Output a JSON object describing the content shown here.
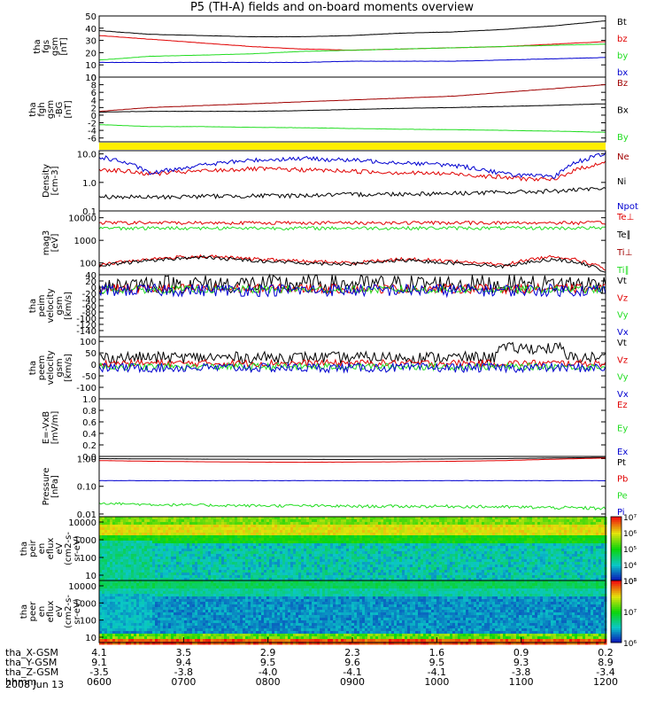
{
  "title": "P5 (TH-A) fields and on-board moments overview",
  "date": "2008 Jun 13",
  "colors": {
    "black": "#000000",
    "red": "#e00000",
    "green": "#22dd22",
    "blue": "#0000d0",
    "darkred": "#a00000",
    "yellow": "#ffee00"
  },
  "chart_data": [
    {
      "type": "line",
      "id": "fgs",
      "ylabel": [
        "tha",
        "fgs",
        "gsm",
        "[nT]"
      ],
      "ylim": [
        0,
        50
      ],
      "scale": "linear",
      "ticks": [
        "0",
        "10",
        "20",
        "30",
        "40",
        "50"
      ],
      "series": [
        {
          "name": "Bt",
          "color": "black",
          "values": [
            38,
            35,
            34,
            33,
            33,
            34,
            36,
            37,
            39,
            42,
            46
          ]
        },
        {
          "name": "bz",
          "color": "red",
          "values": [
            34,
            31,
            28,
            25,
            23,
            22,
            23,
            24,
            25,
            27,
            29
          ]
        },
        {
          "name": "by",
          "color": "green",
          "values": [
            14,
            17,
            18,
            19,
            21,
            22,
            23,
            24,
            25,
            26,
            27
          ]
        },
        {
          "name": "bx",
          "color": "blue",
          "values": [
            12,
            12,
            12,
            12,
            12,
            13,
            13,
            13,
            14,
            15,
            16
          ]
        }
      ]
    },
    {
      "type": "line",
      "id": "fgh",
      "ylabel": [
        "tha",
        "fgh",
        "gsm",
        "-BG",
        "[nT]"
      ],
      "ylim": [
        -7,
        10
      ],
      "scale": "linear",
      "ticks": [
        "-6",
        "-4",
        "-2",
        "0",
        "2",
        "4",
        "6",
        "8",
        "10"
      ],
      "series": [
        {
          "name": "Bz",
          "color": "darkred",
          "values": [
            1,
            2,
            2.5,
            3,
            3.5,
            4,
            4.5,
            5,
            6,
            7,
            8
          ]
        },
        {
          "name": "Bx",
          "color": "black",
          "values": [
            0.8,
            1,
            1,
            1,
            1.2,
            1.5,
            1.8,
            2,
            2.3,
            2.6,
            3
          ]
        },
        {
          "name": "By",
          "color": "green",
          "values": [
            -2.5,
            -3,
            -3,
            -3.2,
            -3.3,
            -3.5,
            -3.7,
            -3.8,
            -4,
            -4.2,
            -4.5
          ]
        }
      ]
    },
    {
      "type": "bar",
      "id": "flag",
      "ylabel": [],
      "color": "yellow"
    },
    {
      "type": "line",
      "id": "density",
      "ylabel": [
        "Density",
        "[cm-3]"
      ],
      "ylim": [
        0.1,
        13
      ],
      "scale": "log",
      "ticks": [
        "0.1",
        "1.0",
        "10.0"
      ],
      "series": [
        {
          "name": "Ne",
          "color": "red",
          "values": [
            3,
            2,
            2.5,
            3,
            2.8,
            2.5,
            2.2,
            2,
            1.5,
            1.2,
            5
          ]
        },
        {
          "name": "Ni",
          "color": "black",
          "values": [
            0.32,
            0.3,
            0.33,
            0.34,
            0.35,
            0.38,
            0.4,
            0.42,
            0.45,
            0.5,
            0.6
          ]
        },
        {
          "name": "Npot",
          "color": "blue",
          "values": [
            8,
            2,
            4,
            6,
            7,
            6,
            5,
            4,
            2,
            1.5,
            10
          ]
        }
      ]
    },
    {
      "type": "line",
      "id": "temp",
      "ylabel": [
        "mag3",
        "[eV]"
      ],
      "ylim": [
        30,
        20000
      ],
      "scale": "log",
      "ticks": [
        "100",
        "1000",
        "10000"
      ],
      "series": [
        {
          "name": "Te⊥",
          "color": "red",
          "values": [
            80,
            150,
            200,
            150,
            120,
            100,
            150,
            120,
            80,
            200,
            50
          ]
        },
        {
          "name": "Te∥",
          "color": "black",
          "values": [
            70,
            130,
            180,
            130,
            100,
            90,
            130,
            100,
            70,
            150,
            40
          ]
        },
        {
          "name": "Ti⊥",
          "color": "red",
          "values": [
            6000,
            6000,
            6000,
            6000,
            6000,
            6000,
            6000,
            6000,
            6000,
            6000,
            6000
          ]
        },
        {
          "name": "Ti∥",
          "color": "green",
          "values": [
            3500,
            3500,
            3500,
            3500,
            3500,
            3500,
            3500,
            3500,
            3500,
            3500,
            3500
          ]
        }
      ]
    },
    {
      "type": "line",
      "id": "peim",
      "ylabel": [
        "tha",
        "peim",
        "velocity",
        "gsm",
        "[km/s]"
      ],
      "ylim": [
        -160,
        40
      ],
      "scale": "linear",
      "ticks": [
        "-140",
        "-120",
        "-100",
        "-80",
        "-60",
        "-40",
        "-20",
        "0",
        "20",
        "40"
      ],
      "series": [
        {
          "name": "Vt",
          "color": "black"
        },
        {
          "name": "Vz",
          "color": "red"
        },
        {
          "name": "Vy",
          "color": "green"
        },
        {
          "name": "Vx",
          "color": "blue"
        }
      ]
    },
    {
      "type": "line",
      "id": "peem",
      "ylabel": [
        "tha",
        "peem",
        "velocity",
        "gsm",
        "[km/s]"
      ],
      "ylim": [
        -150,
        120
      ],
      "scale": "linear",
      "ticks": [
        "-100",
        "-50",
        "0",
        "50",
        "100"
      ],
      "series": [
        {
          "name": "Vt",
          "color": "black"
        },
        {
          "name": "Vz",
          "color": "red"
        },
        {
          "name": "Vy",
          "color": "green"
        },
        {
          "name": "Vx",
          "color": "blue"
        }
      ]
    },
    {
      "type": "line",
      "id": "efield",
      "ylabel": [
        "E=-VxB",
        "[mV/m]"
      ],
      "ylim": [
        0,
        1
      ],
      "scale": "linear",
      "ticks": [
        "0.0",
        "0.2",
        "0.4",
        "0.6",
        "0.8",
        "1.0"
      ],
      "series": [
        {
          "name": "Ez",
          "color": "red"
        },
        {
          "name": "Ey",
          "color": "green"
        },
        {
          "name": "Ex",
          "color": "blue"
        }
      ]
    },
    {
      "type": "line",
      "id": "pressure",
      "ylabel": [
        "Pressure",
        "[nPa]"
      ],
      "ylim": [
        0.008,
        1.2
      ],
      "scale": "log",
      "ticks": [
        "0.01",
        "0.10",
        "1.00"
      ],
      "series": [
        {
          "name": "Pt",
          "color": "black",
          "values": [
            1.0,
            0.98,
            0.96,
            0.95,
            0.94,
            0.93,
            0.95,
            0.97,
            1.0,
            1.05,
            1.1
          ]
        },
        {
          "name": "Pb",
          "color": "red",
          "values": [
            0.85,
            0.8,
            0.77,
            0.75,
            0.74,
            0.75,
            0.77,
            0.8,
            0.85,
            0.95,
            1.05
          ]
        },
        {
          "name": "Pe",
          "color": "green",
          "values": [
            0.025,
            0.022,
            0.021,
            0.02,
            0.02,
            0.019,
            0.019,
            0.019,
            0.018,
            0.017,
            0.016
          ]
        },
        {
          "name": "Pi",
          "color": "blue",
          "values": [
            0.16,
            0.16,
            0.16,
            0.16,
            0.16,
            0.16,
            0.16,
            0.16,
            0.16,
            0.16,
            0.16
          ]
        }
      ]
    },
    {
      "type": "heatmap",
      "id": "peir",
      "ylabel": [
        "tha",
        "peir",
        "en",
        "eflux",
        "eV",
        "(cm2-s-",
        "sr-eV)"
      ],
      "ticks": [
        "10",
        "100",
        "1000",
        "10000"
      ],
      "colorbar": [
        "10³",
        "10⁴",
        "10⁵",
        "10⁶",
        "10⁷"
      ]
    },
    {
      "type": "heatmap",
      "id": "peer",
      "ylabel": [
        "tha",
        "peer",
        "en",
        "eflux",
        "eV",
        "(cm2-s-",
        "sr-eV)"
      ],
      "ticks": [
        "10",
        "100",
        "1000",
        "10000"
      ],
      "colorbar": [
        "10⁶",
        "10⁷",
        "10⁸"
      ]
    }
  ],
  "xaxis": {
    "rows": [
      {
        "label": "tha_X-GSM",
        "values": [
          "4.1",
          "3.5",
          "2.9",
          "2.3",
          "1.6",
          "0.9",
          "0.2"
        ]
      },
      {
        "label": "tha_Y-GSM",
        "values": [
          "9.1",
          "9.4",
          "9.5",
          "9.6",
          "9.5",
          "9.3",
          "8.9"
        ]
      },
      {
        "label": "tha_Z-GSM",
        "values": [
          "-3.5",
          "-3.8",
          "-4.0",
          "-4.1",
          "-4.1",
          "-3.8",
          "-3.4"
        ]
      },
      {
        "label": "hhmm",
        "values": [
          "0600",
          "0700",
          "0800",
          "0900",
          "1000",
          "1100",
          "1200"
        ]
      }
    ]
  }
}
